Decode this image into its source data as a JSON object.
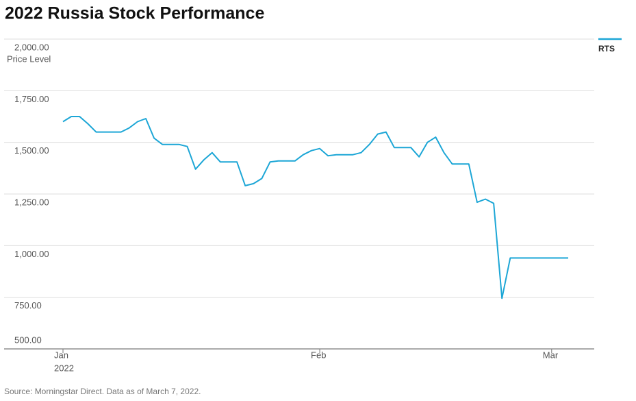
{
  "chart_data": {
    "type": "line",
    "title": "2022 Russia Stock Performance",
    "y_label": "Price Level",
    "year_label": "2022",
    "source": "Source: Morningstar Direct. Data as of March 7, 2022.",
    "categories": [
      "Jan",
      null,
      null,
      null,
      null,
      null,
      null,
      null,
      null,
      null,
      null,
      null,
      null,
      null,
      null,
      null,
      null,
      null,
      null,
      null,
      null,
      null,
      null,
      null,
      null,
      null,
      null,
      null,
      null,
      null,
      null,
      "Feb",
      null,
      null,
      null,
      null,
      null,
      null,
      null,
      null,
      null,
      null,
      null,
      null,
      null,
      null,
      null,
      null,
      null,
      null,
      null,
      null,
      null,
      null,
      null,
      null,
      null,
      null,
      null,
      "Mar",
      null,
      null
    ],
    "series": [
      {
        "name": "RTS",
        "color": "#1ca6d6",
        "values": [
          1600,
          1625,
          1625,
          1590,
          1550,
          1550,
          1550,
          1550,
          1570,
          1600,
          1615,
          1520,
          1490,
          1490,
          1490,
          1480,
          1370,
          1415,
          1450,
          1405,
          1405,
          1405,
          1290,
          1300,
          1325,
          1405,
          1410,
          1410,
          1410,
          1440,
          1460,
          1470,
          1435,
          1440,
          1440,
          1440,
          1450,
          1490,
          1540,
          1550,
          1475,
          1475,
          1475,
          1430,
          1500,
          1525,
          1450,
          1395,
          1395,
          1395,
          1210,
          1225,
          1205,
          745,
          940,
          940,
          940,
          940,
          940,
          940,
          940,
          940
        ]
      }
    ],
    "ylim": [
      500,
      2000
    ],
    "yticks": [
      {
        "value": 500,
        "label": "500.00"
      },
      {
        "value": 750,
        "label": "750.00"
      },
      {
        "value": 1000,
        "label": "1,000.00"
      },
      {
        "value": 1250,
        "label": "1,250.00"
      },
      {
        "value": 1500,
        "label": "1,500.00"
      },
      {
        "value": 1750,
        "label": "1,750.00"
      },
      {
        "value": 2000,
        "label": "2,000.00"
      }
    ],
    "grid": true,
    "legend": "top-right"
  }
}
